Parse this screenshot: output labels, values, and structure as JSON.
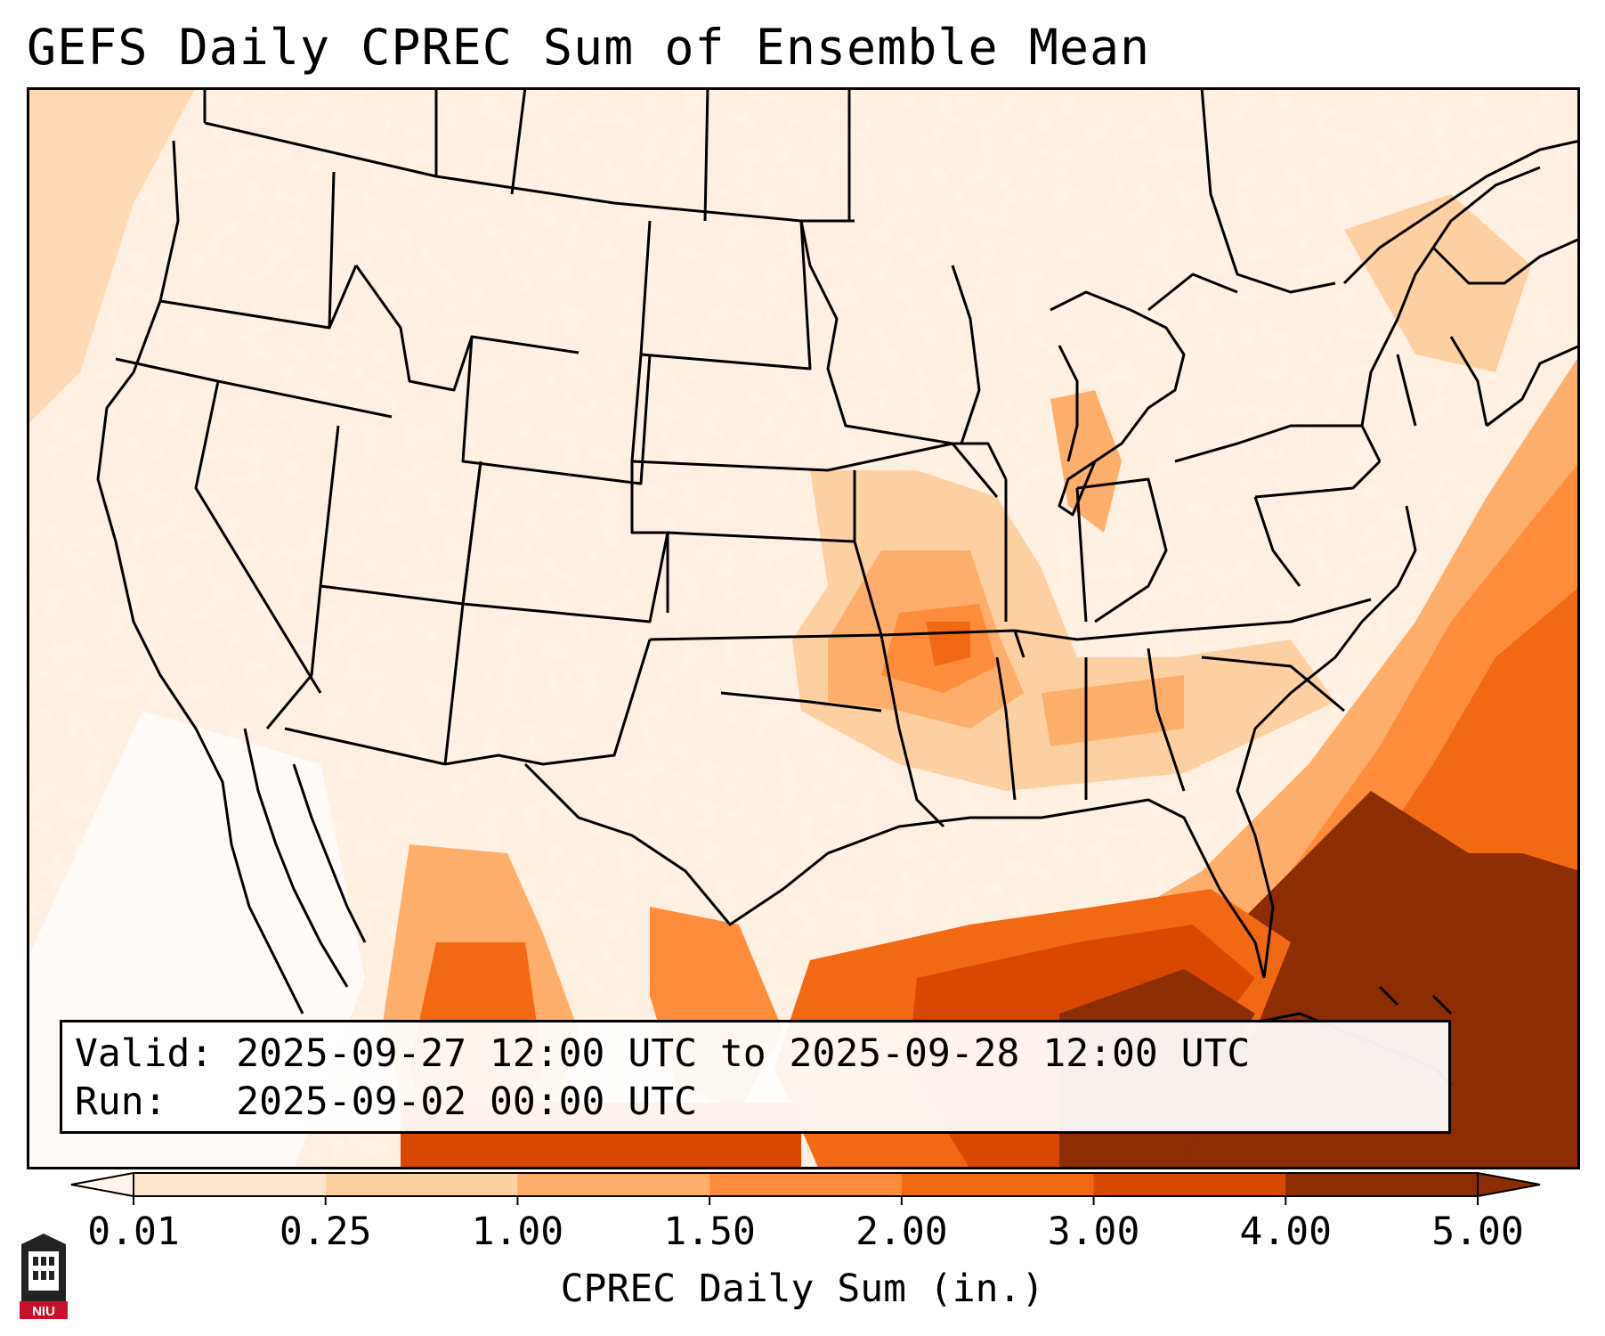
{
  "title": "GEFS Daily CPREC Sum of Ensemble Mean",
  "info": {
    "valid_label": "Valid:",
    "valid_value": "2025-09-27 12:00 UTC to 2025-09-28 12:00 UTC",
    "run_label": "Run:",
    "run_value": "2025-09-02 00:00 UTC"
  },
  "colorbar": {
    "label": "CPREC Daily Sum (in.)",
    "ticks": [
      "0.01",
      "0.25",
      "1.00",
      "1.50",
      "2.00",
      "3.00",
      "4.00",
      "5.00"
    ],
    "colors": [
      "#fff5eb",
      "#fee6ce",
      "#fdd0a2",
      "#fdae6b",
      "#fd8d3c",
      "#f16913",
      "#d94801",
      "#8c2d04"
    ],
    "extend": "both"
  },
  "logo": {
    "text": "NIU",
    "color": "#c8102e"
  }
}
